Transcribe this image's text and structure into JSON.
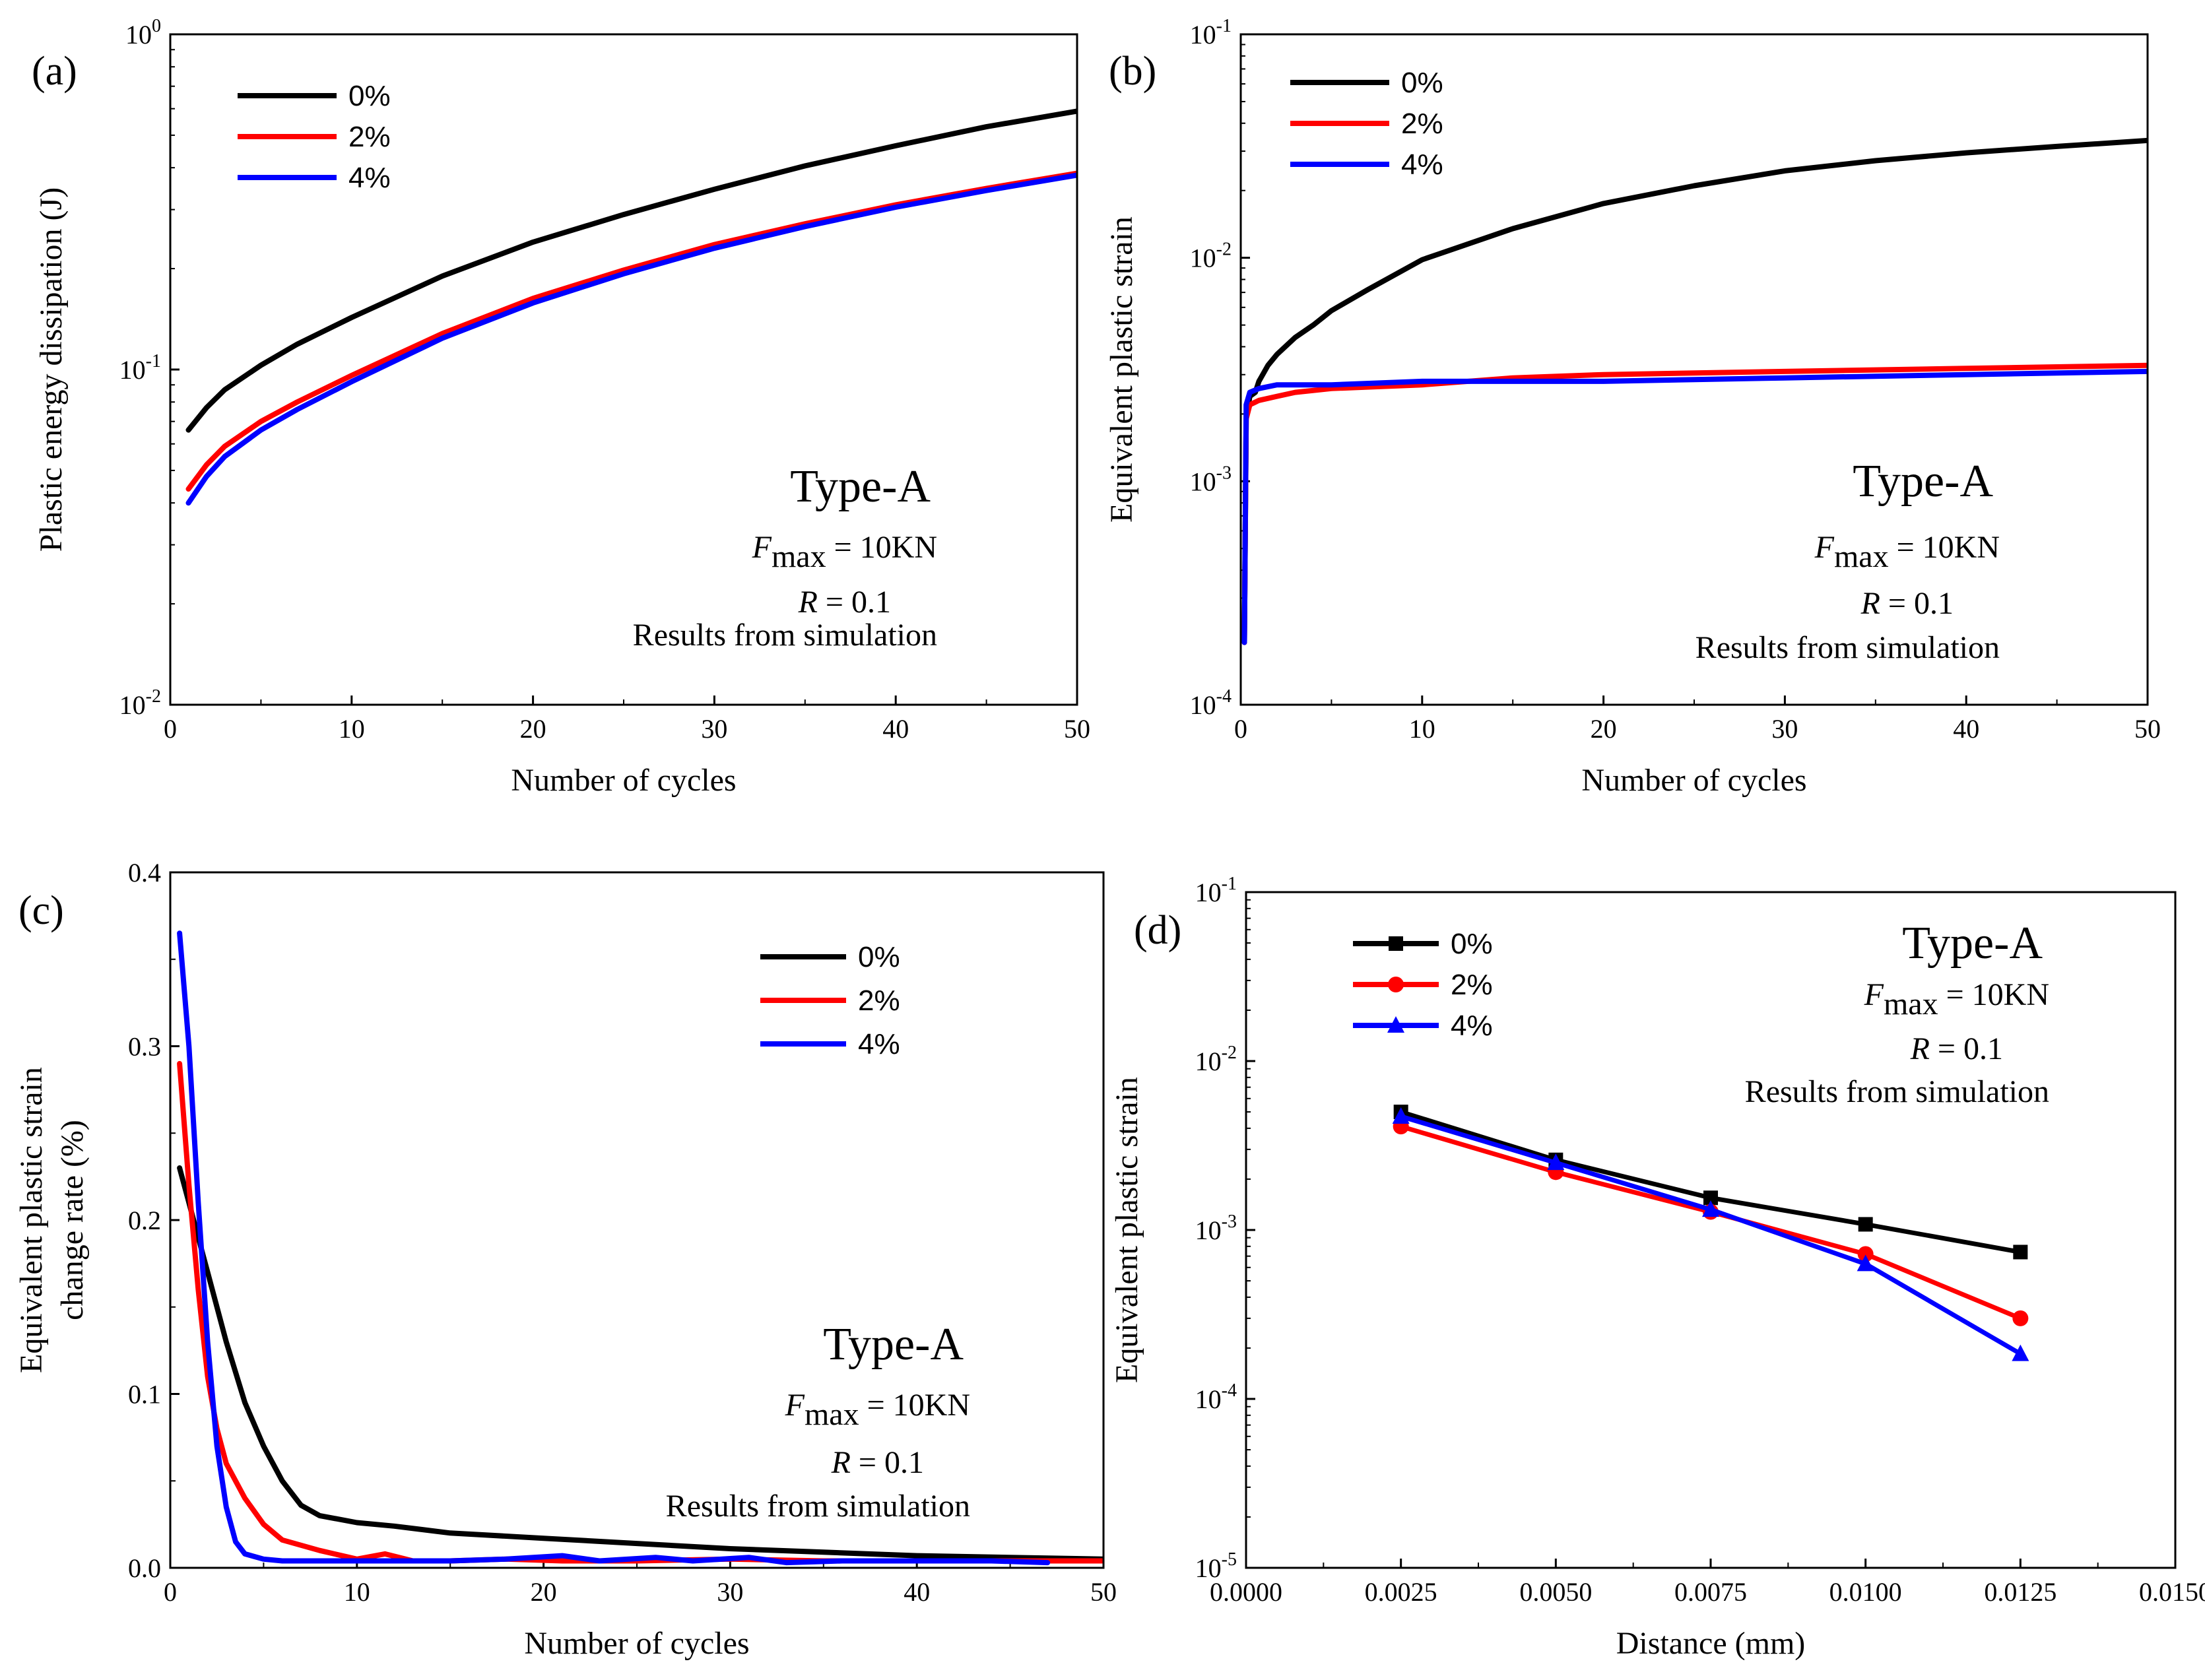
{
  "chart_data": [
    {
      "type": "line",
      "panel_label": "(a)",
      "xlabel": "Number of cycles",
      "ylabel": "Plastic energy dissipation (J)",
      "xlim": [
        0,
        50
      ],
      "ylim": [
        0.01,
        1
      ],
      "yscale": "log",
      "x_ticks": [
        "0",
        "10",
        "20",
        "30",
        "40",
        "50"
      ],
      "y_ticks": [
        {
          "base": "10",
          "exp": "-2"
        },
        {
          "base": "10",
          "exp": "-1"
        },
        {
          "base": "10",
          "exp": "0"
        }
      ],
      "legend": {
        "placement": "top-left"
      },
      "annotation": {
        "title": "Type-A",
        "fmax_symbol": "F",
        "fmax_sub": "max",
        "fmax_value": " = 10KN",
        "r_symbol": "R",
        "r_value": " = 0.1",
        "note": "Results from simulation"
      },
      "series": [
        {
          "name": "0%",
          "color": "#000000",
          "x": [
            1,
            2,
            3,
            5,
            7,
            10,
            15,
            20,
            25,
            30,
            35,
            40,
            45,
            50
          ],
          "y": [
            0.066,
            0.077,
            0.087,
            0.103,
            0.119,
            0.143,
            0.19,
            0.24,
            0.29,
            0.345,
            0.405,
            0.465,
            0.53,
            0.59
          ]
        },
        {
          "name": "2%",
          "color": "#ff0000",
          "x": [
            1,
            2,
            3,
            5,
            7,
            10,
            15,
            20,
            25,
            30,
            35,
            40,
            45,
            50
          ],
          "y": [
            0.044,
            0.052,
            0.059,
            0.07,
            0.08,
            0.096,
            0.128,
            0.163,
            0.198,
            0.236,
            0.272,
            0.31,
            0.347,
            0.385
          ]
        },
        {
          "name": "4%",
          "color": "#0000ff",
          "x": [
            1,
            2,
            3,
            5,
            7,
            10,
            15,
            20,
            25,
            30,
            35,
            40,
            45,
            50
          ],
          "y": [
            0.04,
            0.048,
            0.055,
            0.066,
            0.076,
            0.092,
            0.124,
            0.158,
            0.193,
            0.23,
            0.267,
            0.305,
            0.342,
            0.38
          ]
        }
      ]
    },
    {
      "type": "line",
      "panel_label": "(b)",
      "xlabel": "Number of cycles",
      "ylabel": "Equivalent plastic strain",
      "xlim": [
        0,
        50
      ],
      "ylim": [
        0.0001,
        0.1
      ],
      "yscale": "log",
      "x_ticks": [
        "0",
        "10",
        "20",
        "30",
        "40",
        "50"
      ],
      "y_ticks": [
        {
          "base": "10",
          "exp": "-4"
        },
        {
          "base": "10",
          "exp": "-3"
        },
        {
          "base": "10",
          "exp": "-2"
        },
        {
          "base": "10",
          "exp": "-1"
        }
      ],
      "legend": {
        "placement": "top-left"
      },
      "annotation": {
        "title": "Type-A",
        "fmax_symbol": "F",
        "fmax_sub": "max",
        "fmax_value": " = 10KN",
        "r_symbol": "R",
        "r_value": " = 0.1",
        "note": "Results from simulation"
      },
      "series": [
        {
          "name": "0%",
          "color": "#000000",
          "x": [
            0.2,
            0.3,
            0.5,
            0.8,
            1,
            1.5,
            2,
            3,
            4,
            5,
            7,
            10,
            15,
            20,
            25,
            30,
            35,
            40,
            45,
            50
          ],
          "y": [
            0.00019,
            0.0019,
            0.0024,
            0.0025,
            0.0028,
            0.0033,
            0.0037,
            0.0044,
            0.005,
            0.0058,
            0.0072,
            0.0098,
            0.0135,
            0.0175,
            0.021,
            0.0245,
            0.0272,
            0.0295,
            0.0315,
            0.0335
          ]
        },
        {
          "name": "2%",
          "color": "#ff0000",
          "x": [
            0.2,
            0.3,
            0.5,
            1,
            2,
            3,
            5,
            10,
            15,
            20,
            30,
            40,
            50
          ],
          "y": [
            0.00019,
            0.0019,
            0.0022,
            0.0023,
            0.0024,
            0.0025,
            0.0026,
            0.0027,
            0.0029,
            0.003,
            0.0031,
            0.0032,
            0.0033
          ]
        },
        {
          "name": "4%",
          "color": "#0000ff",
          "x": [
            0.2,
            0.3,
            0.5,
            1,
            2,
            3,
            5,
            10,
            20,
            30,
            40,
            50
          ],
          "y": [
            0.00019,
            0.0022,
            0.0025,
            0.0026,
            0.0027,
            0.0027,
            0.0027,
            0.0028,
            0.0028,
            0.0029,
            0.003,
            0.0031
          ]
        }
      ]
    },
    {
      "type": "line",
      "panel_label": "(c)",
      "xlabel": "Number of cycles",
      "ylabel": "Equivalent plastic strain change rate (%)",
      "ylabel_lines": [
        "Equivalent plastic strain",
        "change rate (%)"
      ],
      "xlim": [
        0,
        50
      ],
      "ylim": [
        0,
        0.4
      ],
      "yscale": "linear",
      "x_ticks": [
        "0",
        "10",
        "20",
        "30",
        "40",
        "50"
      ],
      "y_ticks": [
        "0.0",
        "0.1",
        "0.2",
        "0.3",
        "0.4"
      ],
      "legend": {
        "placement": "top-right"
      },
      "annotation": {
        "title": "Type-A",
        "fmax_symbol": "F",
        "fmax_sub": "max",
        "fmax_value": " = 10KN",
        "r_symbol": "R",
        "r_value": " = 0.1",
        "note": "Results from simulation"
      },
      "series": [
        {
          "name": "0%",
          "color": "#000000",
          "x": [
            0.5,
            1,
            1.5,
            2,
            3,
            4,
            5,
            6,
            7,
            8,
            10,
            12,
            15,
            20,
            25,
            30,
            35,
            40,
            45,
            50
          ],
          "y": [
            0.23,
            0.21,
            0.19,
            0.17,
            0.13,
            0.095,
            0.07,
            0.05,
            0.036,
            0.03,
            0.026,
            0.024,
            0.02,
            0.017,
            0.014,
            0.011,
            0.009,
            0.007,
            0.006,
            0.005
          ]
        },
        {
          "name": "2%",
          "color": "#ff0000",
          "x": [
            0.5,
            1,
            1.5,
            2,
            2.5,
            3,
            4,
            5,
            6,
            8,
            10,
            11.5,
            13,
            15,
            18,
            21,
            25,
            30,
            35,
            40,
            45,
            50
          ],
          "y": [
            0.29,
            0.22,
            0.16,
            0.11,
            0.08,
            0.06,
            0.04,
            0.025,
            0.016,
            0.01,
            0.005,
            0.008,
            0.004,
            0.004,
            0.005,
            0.004,
            0.004,
            0.005,
            0.004,
            0.004,
            0.004,
            0.004
          ]
        },
        {
          "name": "4%",
          "color": "#0000ff",
          "x": [
            0.5,
            1,
            1.5,
            2,
            2.5,
            3,
            3.5,
            4,
            5,
            6,
            10,
            15,
            18,
            21,
            23,
            26,
            28,
            31,
            33,
            36,
            40,
            44,
            47
          ],
          "y": [
            0.365,
            0.3,
            0.21,
            0.13,
            0.07,
            0.035,
            0.015,
            0.008,
            0.005,
            0.004,
            0.004,
            0.004,
            0.005,
            0.007,
            0.004,
            0.006,
            0.004,
            0.006,
            0.003,
            0.004,
            0.004,
            0.004,
            0.003
          ]
        }
      ]
    },
    {
      "type": "line",
      "panel_label": "(d)",
      "xlabel": "Distance (mm)",
      "ylabel": "Equivalent plastic strain",
      "xlim": [
        0,
        0.015
      ],
      "ylim": [
        1e-05,
        0.1
      ],
      "yscale": "log",
      "x_ticks": [
        "0.0000",
        "0.0025",
        "0.0050",
        "0.0075",
        "0.0100",
        "0.0125",
        "0.0150"
      ],
      "y_ticks": [
        {
          "base": "10",
          "exp": "-5"
        },
        {
          "base": "10",
          "exp": "-4"
        },
        {
          "base": "10",
          "exp": "-3"
        },
        {
          "base": "10",
          "exp": "-2"
        },
        {
          "base": "10",
          "exp": "-1"
        }
      ],
      "legend": {
        "placement": "top-left"
      },
      "annotation": {
        "title": "Type-A",
        "fmax_symbol": "F",
        "fmax_sub": "max",
        "fmax_value": " = 10KN",
        "r_symbol": "R",
        "r_value": " = 0.1",
        "note": "Results from simulation"
      },
      "series": [
        {
          "name": "0%",
          "color": "#000000",
          "marker": "square",
          "x": [
            0.0025,
            0.005,
            0.0075,
            0.01,
            0.0125
          ],
          "y": [
            0.005,
            0.0026,
            0.00155,
            0.00108,
            0.00074
          ]
        },
        {
          "name": "2%",
          "color": "#ff0000",
          "marker": "circle",
          "x": [
            0.0025,
            0.005,
            0.0075,
            0.01,
            0.0125
          ],
          "y": [
            0.0041,
            0.0022,
            0.00128,
            0.00072,
            0.0003
          ]
        },
        {
          "name": "4%",
          "color": "#0000ff",
          "marker": "triangle",
          "x": [
            0.0025,
            0.005,
            0.0075,
            0.01,
            0.0125
          ],
          "y": [
            0.0047,
            0.0025,
            0.00132,
            0.00063,
            0.000185
          ]
        }
      ]
    }
  ]
}
